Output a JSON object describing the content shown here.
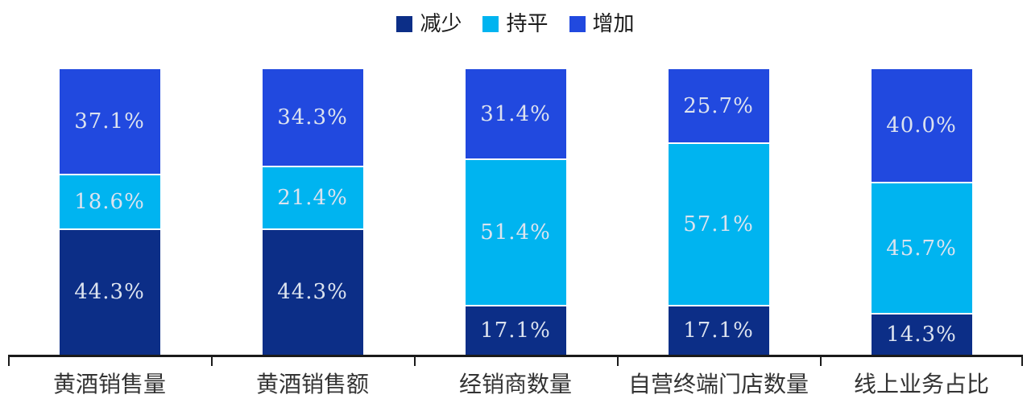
{
  "chart_data": {
    "type": "bar",
    "stacked": true,
    "orientation": "vertical",
    "title": "",
    "legend_position": "top",
    "grid": false,
    "ylim": [
      0,
      100
    ],
    "unit": "percent",
    "categories": [
      "黄酒销售量",
      "黄酒销售额",
      "经销商数量",
      "自营终端门店数量",
      "线上业务占比"
    ],
    "series": [
      {
        "key": "decrease",
        "name": "减少",
        "color": "#0C2E87",
        "values": [
          44.3,
          44.3,
          17.1,
          17.1,
          14.3
        ],
        "labels": [
          "44.3%",
          "44.3%",
          "17.1%",
          "17.1%",
          "14.3%"
        ]
      },
      {
        "key": "flat",
        "name": "持平",
        "color": "#00B4F0",
        "values": [
          18.6,
          21.4,
          51.4,
          57.1,
          45.7
        ],
        "labels": [
          "18.6%",
          "21.4%",
          "51.4%",
          "57.1%",
          "45.7%"
        ]
      },
      {
        "key": "increase",
        "name": "增加",
        "color": "#2149DF",
        "values": [
          37.1,
          34.3,
          31.4,
          25.7,
          40.0
        ],
        "labels": [
          "37.1%",
          "34.3%",
          "31.4%",
          "25.7%",
          "40.0%"
        ]
      }
    ],
    "value_label_color": "#DCE3EF",
    "axis_color": "#1A1A1A",
    "background_color": "#FFFFFF"
  }
}
